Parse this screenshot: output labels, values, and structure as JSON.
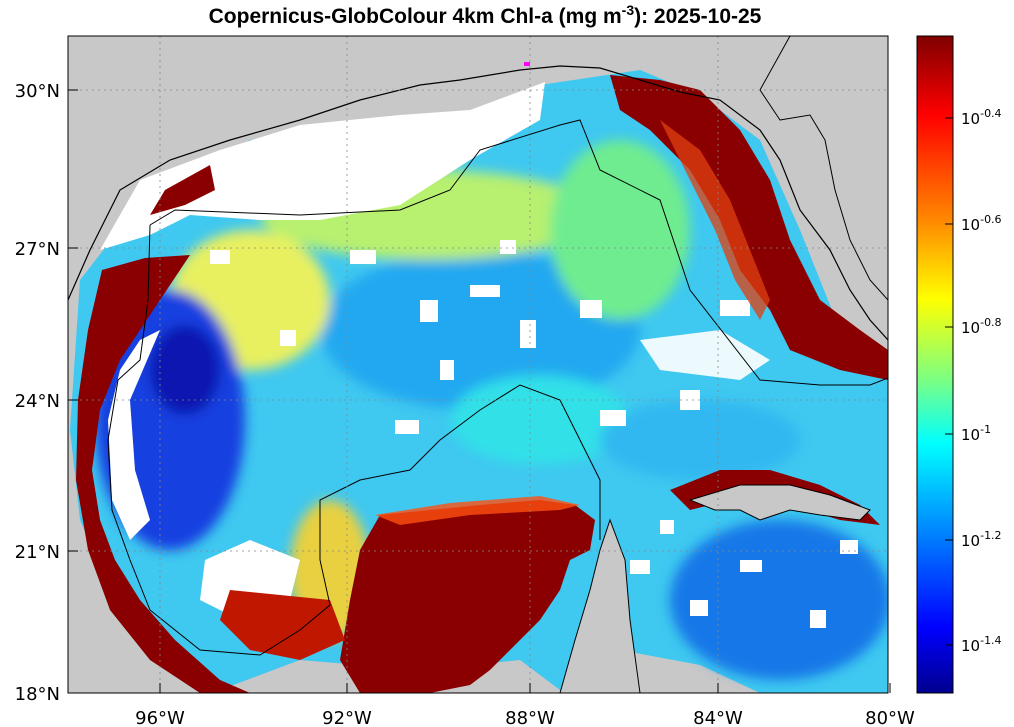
{
  "title": {
    "prefix": "Copernicus-GlobColour 4km Chl-a (mg m",
    "exponent": "-3",
    "suffix": "): 2025-10-25"
  },
  "axes": {
    "lat_ticks": [
      "30°N",
      "27°N",
      "24°N",
      "21°N",
      "18°N"
    ],
    "lon_ticks": [
      "96°W",
      "92°W",
      "88°W",
      "84°W",
      "80°W"
    ]
  },
  "colorbar": {
    "labels": [
      {
        "base": "10",
        "exp": "-0.4"
      },
      {
        "base": "10",
        "exp": "-0.6"
      },
      {
        "base": "10",
        "exp": "-0.8"
      },
      {
        "base": "10",
        "exp": "-1"
      },
      {
        "base": "10",
        "exp": "-1.2"
      },
      {
        "base": "10",
        "exp": "-1.4"
      }
    ],
    "colors": [
      "#7f0000",
      "#ff0000",
      "#ff8800",
      "#ffff00",
      "#7fff7f",
      "#00ffff",
      "#0080ff",
      "#0000ff",
      "#00008f"
    ]
  },
  "colors": {
    "land": "#c8c8c8",
    "no_data": "#ffffff",
    "coastline": "#000000",
    "marker": "#ff00ff"
  }
}
